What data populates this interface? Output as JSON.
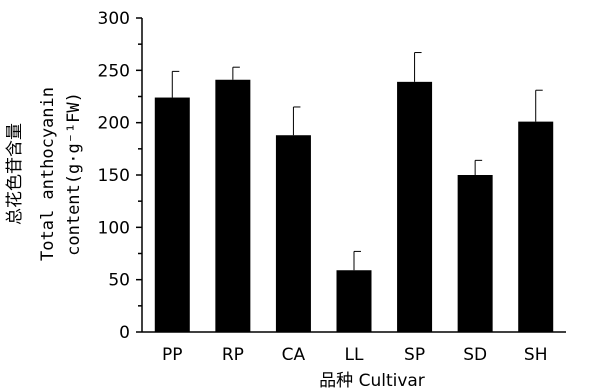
{
  "chart_data": {
    "type": "bar",
    "categories": [
      "PP",
      "RP",
      "CA",
      "LL",
      "SP",
      "SD",
      "SH"
    ],
    "values": [
      224,
      241,
      188,
      59,
      239,
      150,
      201
    ],
    "error_plus": [
      25,
      12,
      27,
      18,
      28,
      14,
      30
    ],
    "title": "",
    "xlabel": "品种 Cultivar",
    "ylabel_line1": "总花色苷含量",
    "ylabel_line2": "Total anthocyanin",
    "ylabel_line3": "content(g·g⁻¹FW)",
    "ylim": [
      0,
      300
    ],
    "yticks": [
      "0",
      "50",
      "100",
      "150",
      "200",
      "250",
      "300"
    ],
    "grid": false,
    "legend": "none",
    "bar_color": "#000000"
  }
}
